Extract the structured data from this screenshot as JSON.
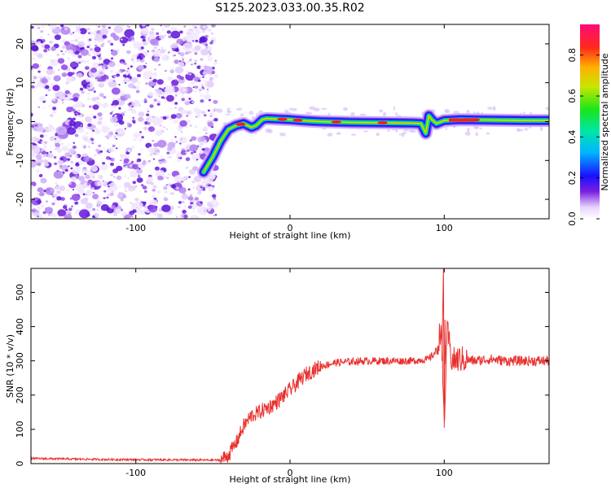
{
  "title": "S125.2023.033.00.35.R02",
  "colors": {
    "snr_line": "#e8302e",
    "scatter": "#7a1fe0",
    "band_edge": "#1a10ff",
    "band_core": "#ff1a1a"
  },
  "chart_data": [
    {
      "type": "heatmap",
      "xlabel": "Height of straight line (km)",
      "ylabel": "Frequency (Hz)",
      "xlim": [
        -168,
        168
      ],
      "ylim": [
        -25,
        25
      ],
      "xticks": [
        -100,
        0,
        100
      ],
      "yticks": [
        -20,
        -10,
        0,
        10,
        20
      ],
      "colorbar": {
        "label": "Normalized spectral amplitude",
        "range": [
          0,
          0.95
        ],
        "ticks": [
          0.0,
          0.2,
          0.4,
          0.6,
          0.8
        ],
        "tick_labels": [
          "0.0",
          "0.2",
          "0.4",
          "0.6",
          "0.8"
        ]
      },
      "noise_region_x": [
        -168,
        -51
      ],
      "ridge": {
        "x": [
          -56,
          -50,
          -45,
          -40,
          -35,
          -30,
          -25,
          -22,
          -18,
          -15,
          -10,
          0,
          10,
          20,
          40,
          60,
          80,
          85,
          88,
          90,
          92,
          95,
          100,
          110,
          130,
          150,
          168
        ],
        "freq": [
          -13,
          -9,
          -5,
          -2,
          -1,
          -0.5,
          -1.5,
          -1.0,
          0.5,
          0.8,
          0.7,
          0.5,
          0.2,
          0.0,
          -0.2,
          -0.3,
          -0.4,
          -0.5,
          -3.0,
          1.5,
          0.5,
          -0.5,
          0.3,
          0.5,
          0.4,
          0.3,
          0.3
        ]
      }
    },
    {
      "type": "line",
      "xlabel": "Height of straight line (km)",
      "ylabel": "SNR (10 * v/v)",
      "xlim": [
        -168,
        168
      ],
      "ylim": [
        0,
        570
      ],
      "xticks": [
        -100,
        0,
        100
      ],
      "yticks": [
        0,
        100,
        200,
        300,
        400,
        500
      ],
      "series": [
        {
          "x": [
            -168,
            -120,
            -80,
            -45,
            -40,
            -35,
            -30,
            -25,
            -20,
            -10,
            0,
            10,
            20,
            30,
            40,
            50,
            60,
            70,
            80,
            90,
            95,
            98,
            100,
            102,
            105,
            110,
            120,
            130,
            140,
            150,
            160,
            168
          ],
          "values": [
            15,
            12,
            11,
            10,
            25,
            60,
            110,
            140,
            150,
            175,
            215,
            260,
            285,
            295,
            298,
            300,
            300,
            300,
            300,
            305,
            330,
            400,
            120,
            390,
            300,
            305,
            300,
            305,
            300,
            300,
            300,
            300
          ]
        }
      ]
    }
  ]
}
